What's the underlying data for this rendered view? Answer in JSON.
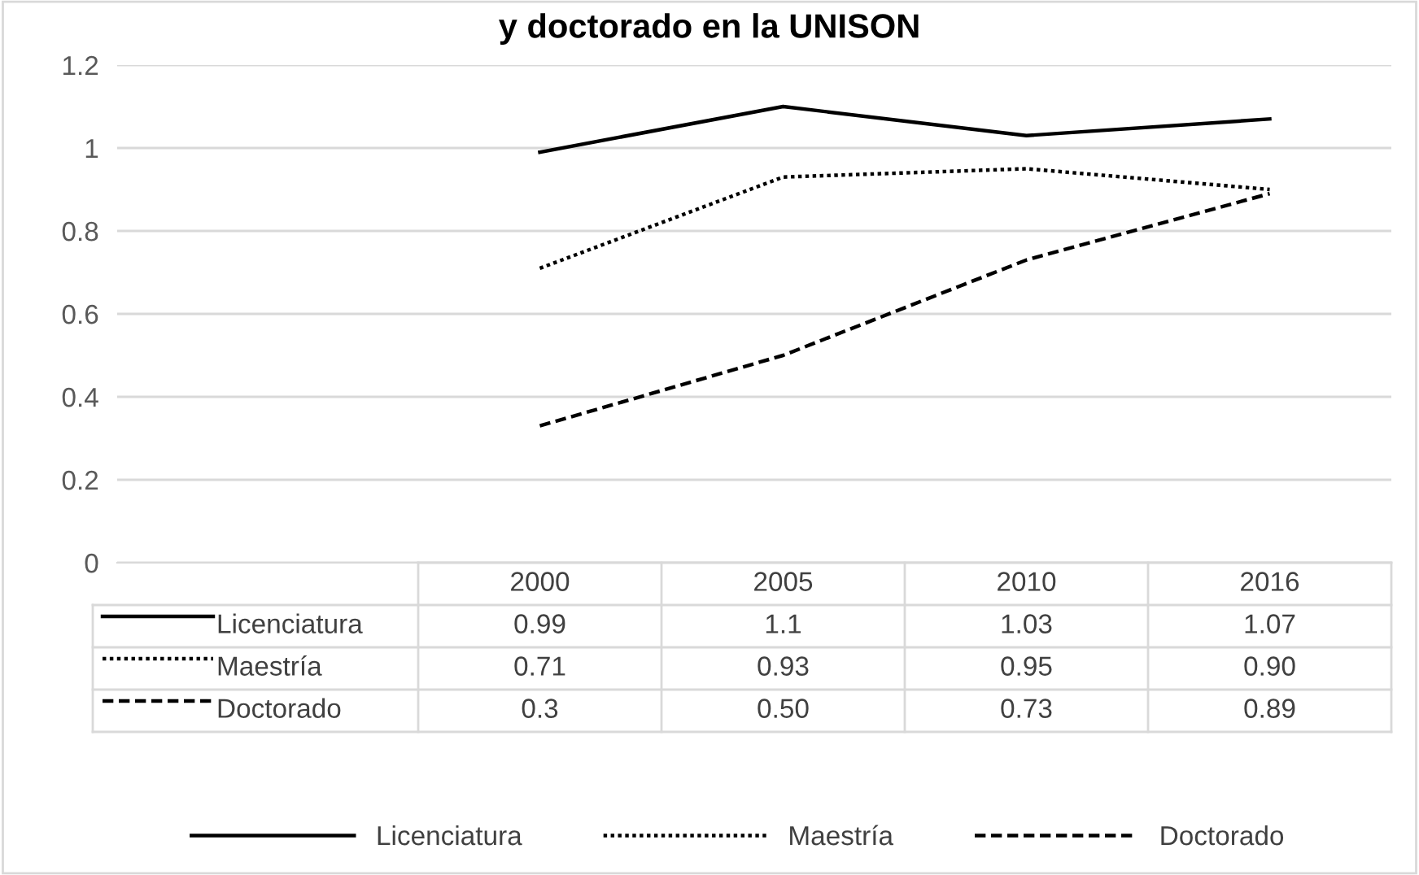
{
  "chart_data": {
    "type": "line",
    "title": "y doctorado en la UNISON",
    "categories": [
      "2000",
      "2005",
      "2010",
      "2016"
    ],
    "series": [
      {
        "name": "Licenciatura",
        "color": "#000000",
        "line_style": "solid",
        "values": [
          0.99,
          1.1,
          1.03,
          1.07
        ],
        "value_labels": [
          "0.99",
          "1.1",
          "1.03",
          "1.07"
        ]
      },
      {
        "name": "Maestría",
        "color": "#000000",
        "line_style": "dotted",
        "values": [
          0.71,
          0.93,
          0.95,
          0.9
        ],
        "value_labels": [
          "0.71",
          "0.93",
          "0.95",
          "0.90"
        ]
      },
      {
        "name": "Doctorado",
        "color": "#000000",
        "line_style": "dashed",
        "values": [
          0.33,
          0.5,
          0.73,
          0.89
        ],
        "value_labels": [
          "0.3",
          "0.50",
          "0.73",
          "0.89"
        ]
      }
    ],
    "ylim": [
      0,
      1.2
    ],
    "yticks": [
      0,
      0.2,
      0.4,
      0.6,
      0.8,
      1,
      1.2
    ],
    "grid": "y",
    "legend": "bottom",
    "marker": "none"
  }
}
